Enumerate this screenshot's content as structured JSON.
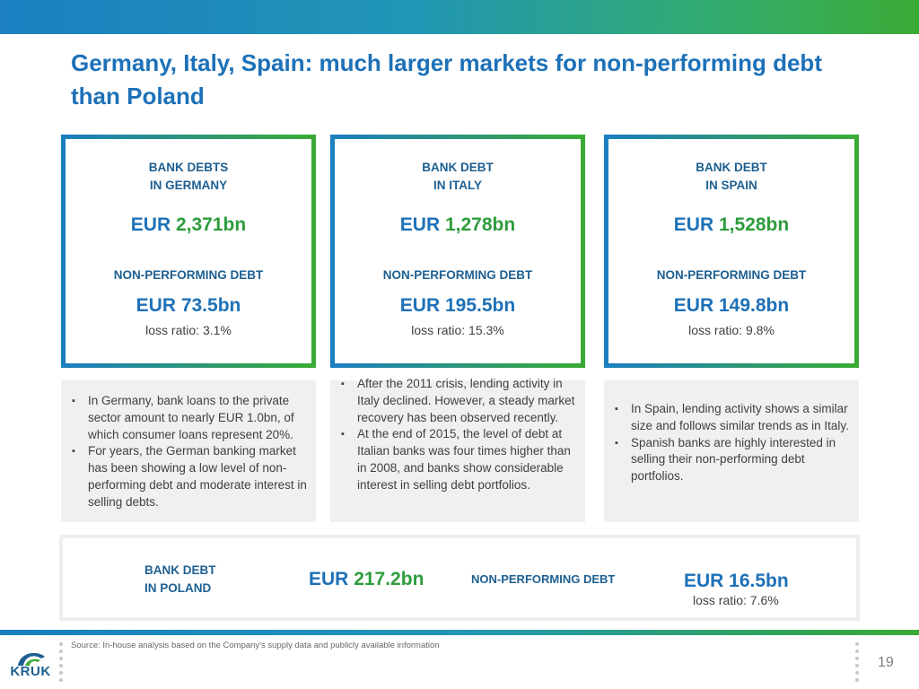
{
  "title": "Germany, Italy, Spain: much larger markets for non-performing debt than Poland",
  "cards": [
    {
      "label_line1": "BANK DEBTS",
      "label_line2": "IN GERMANY",
      "debt_currency": "EUR",
      "debt_value": "2,371bn",
      "npl_label": "NON-PERFORMING DEBT",
      "npl_currency": "EUR",
      "npl_value": "73.5bn",
      "loss_ratio": "loss ratio: 3.1%"
    },
    {
      "label_line1": "BANK DEBT",
      "label_line2": "IN ITALY",
      "debt_currency": "EUR",
      "debt_value": "1,278bn",
      "npl_label": "NON-PERFORMING DEBT",
      "npl_currency": "EUR",
      "npl_value": "195.5bn",
      "loss_ratio": "loss ratio: 15.3%"
    },
    {
      "label_line1": "BANK DEBT",
      "label_line2": "IN SPAIN",
      "debt_currency": "EUR",
      "debt_value": "1,528bn",
      "npl_label": "NON-PERFORMING DEBT",
      "npl_currency": "EUR",
      "npl_value": "149.8bn",
      "loss_ratio": "loss ratio: 9.8%"
    }
  ],
  "notes": {
    "germany": [
      "In Germany, bank loans to the private sector amount to nearly EUR 1.0bn, of which consumer loans represent 20%.",
      "For years, the German banking market has been showing a low level of non-performing debt and moderate interest in selling debts."
    ],
    "italy": [
      "After the 2011 crisis, lending activity in Italy declined. However, a steady market recovery has been observed recently.",
      "At the end of 2015, the level of debt at Italian banks was four times higher than in 2008, and banks show considerable interest in selling debt portfolios."
    ],
    "spain": [
      "In Spain, lending activity shows a similar size and follows similar trends as in Italy.",
      "Spanish banks are highly interested in selling their non-performing debt portfolios."
    ]
  },
  "poland": {
    "label_line1": "BANK DEBT",
    "label_line2": "IN POLAND",
    "debt_currency": "EUR",
    "debt_value": "217.2bn",
    "npl_label": "NON-PERFORMING DEBT",
    "npl_value": "EUR 16.5bn",
    "loss_ratio": "loss ratio: 7.6%"
  },
  "footer": {
    "source": "Source: In-house analysis based on the Company's supply data and publicly available information",
    "page_number": "19",
    "logo_text": "KRUK"
  },
  "colors": {
    "title_blue": "#1d71b8",
    "label_blue": "#1d5f91",
    "green": "#2e9c3c",
    "gradient_start": "#1b7fc0",
    "gradient_end": "#3aaa35"
  }
}
